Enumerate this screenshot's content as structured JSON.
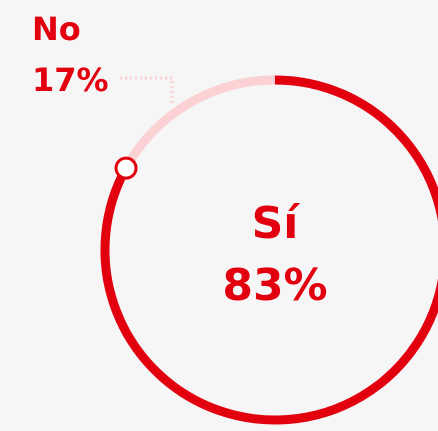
{
  "chart_data": {
    "type": "donut",
    "categories": [
      "Sí",
      "No"
    ],
    "values": [
      83,
      17
    ],
    "value_labels": [
      "83%",
      "17%"
    ],
    "colors": [
      "#e2000f",
      "#fbd1d4"
    ]
  }
}
